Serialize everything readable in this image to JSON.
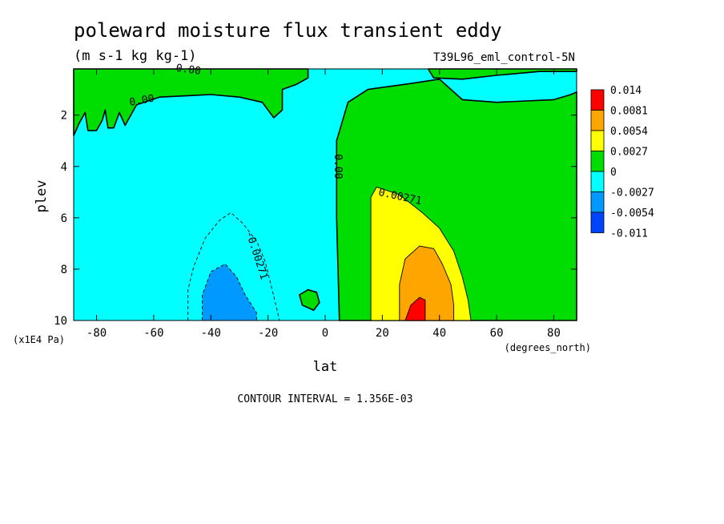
{
  "chart_data": {
    "type": "heatmap",
    "title": "poleward moisture flux transient eddy",
    "units": "(m s-1 kg kg-1)",
    "dataset_label": "T39L96_eml_control-5N",
    "xlabel": "lat",
    "x_units": "(degrees_north)",
    "ylabel": "plev",
    "y_units": "(x1E4 Pa)",
    "xlim": [
      -88,
      88
    ],
    "ylim": [
      10,
      0.2
    ],
    "x_ticks": [
      -80,
      -60,
      -40,
      -20,
      0,
      20,
      40,
      60,
      80
    ],
    "y_ticks": [
      2,
      4,
      6,
      8,
      10
    ],
    "contour_interval_text": "CONTOUR INTERVAL = 1.356E-03",
    "colorbar": {
      "labels": [
        "0.014",
        "0.0081",
        "0.0054",
        "0.0027",
        "0",
        "-0.0027",
        "-0.0054",
        "-0.011"
      ],
      "colors": [
        "#ff0000",
        "#ffa500",
        "#ffff00",
        "#00dd00",
        "#00ffff",
        "#0099ff",
        "#0044ff"
      ]
    },
    "contour_labels": [
      "0.00",
      "0.00",
      "0.00",
      "0.00271",
      "-0.00271"
    ],
    "regions": [
      {
        "level": 0,
        "points": [
          [
            -88,
            2.8
          ],
          [
            -86,
            2.3
          ],
          [
            -84,
            1.9
          ],
          [
            -83,
            2.6
          ],
          [
            -80,
            2.6
          ],
          [
            -78,
            2.2
          ],
          [
            -77,
            1.8
          ],
          [
            -76,
            2.5
          ],
          [
            -74,
            2.5
          ],
          [
            -72,
            1.9
          ],
          [
            -70,
            2.4
          ],
          [
            -66,
            1.6
          ],
          [
            -58,
            1.3
          ],
          [
            -40,
            1.2
          ],
          [
            -30,
            1.3
          ],
          [
            -22,
            1.5
          ],
          [
            -18,
            2.1
          ],
          [
            -15,
            1.8
          ],
          [
            -15,
            1.0
          ],
          [
            -10,
            0.8
          ],
          [
            -6,
            0.55
          ],
          [
            -6,
            0.2
          ],
          [
            -88,
            0.2
          ]
        ]
      },
      {
        "level": 0,
        "points": [
          [
            5,
            10
          ],
          [
            4,
            6
          ],
          [
            4,
            3
          ],
          [
            8,
            1.5
          ],
          [
            15,
            1.0
          ],
          [
            28,
            0.8
          ],
          [
            40,
            0.6
          ],
          [
            48,
            1.4
          ],
          [
            60,
            1.5
          ],
          [
            80,
            1.4
          ],
          [
            86,
            1.2
          ],
          [
            88,
            1.1
          ],
          [
            88,
            10
          ]
        ]
      },
      {
        "level": 0,
        "points": [
          [
            36,
            0.2
          ],
          [
            38,
            0.55
          ],
          [
            48,
            0.6
          ],
          [
            60,
            0.45
          ],
          [
            75,
            0.3
          ],
          [
            88,
            0.3
          ],
          [
            88,
            0.2
          ]
        ]
      },
      {
        "level": 0,
        "points": [
          [
            -6,
            8.8
          ],
          [
            -3,
            8.9
          ],
          [
            -2,
            9.3
          ],
          [
            -4,
            9.6
          ],
          [
            -8,
            9.4
          ],
          [
            -9,
            9.0
          ]
        ]
      },
      {
        "level": 1,
        "points": [
          [
            16,
            10
          ],
          [
            16,
            5.2
          ],
          [
            18,
            4.8
          ],
          [
            26,
            5.1
          ],
          [
            34,
            5.8
          ],
          [
            40,
            6.4
          ],
          [
            45,
            7.3
          ],
          [
            48,
            8.3
          ],
          [
            50,
            9.2
          ],
          [
            51,
            10
          ]
        ]
      },
      {
        "level": 2,
        "points": [
          [
            26,
            10
          ],
          [
            26,
            8.6
          ],
          [
            28,
            7.6
          ],
          [
            33,
            7.1
          ],
          [
            38,
            7.2
          ],
          [
            41,
            7.8
          ],
          [
            44,
            8.6
          ],
          [
            45,
            9.4
          ],
          [
            45,
            10
          ]
        ]
      },
      {
        "level": 3,
        "points": [
          [
            28,
            10
          ],
          [
            30,
            9.4
          ],
          [
            33,
            9.1
          ],
          [
            35,
            9.2
          ],
          [
            35,
            10
          ]
        ]
      },
      {
        "level": -1,
        "points": [
          [
            -48,
            10
          ],
          [
            -48,
            8.8
          ],
          [
            -46,
            7.9
          ],
          [
            -42,
            6.8
          ],
          [
            -37,
            6.1
          ],
          [
            -33,
            5.8
          ],
          [
            -29,
            6.2
          ],
          [
            -24,
            6.9
          ],
          [
            -21,
            7.7
          ],
          [
            -19,
            8.6
          ],
          [
            -17,
            9.5
          ],
          [
            -16,
            10
          ]
        ]
      },
      {
        "level": -2,
        "points": [
          [
            -43,
            10
          ],
          [
            -43,
            9.0
          ],
          [
            -40,
            8.1
          ],
          [
            -35,
            7.8
          ],
          [
            -31,
            8.3
          ],
          [
            -28,
            9.0
          ],
          [
            -24,
            9.7
          ],
          [
            -24,
            10
          ]
        ]
      }
    ]
  }
}
